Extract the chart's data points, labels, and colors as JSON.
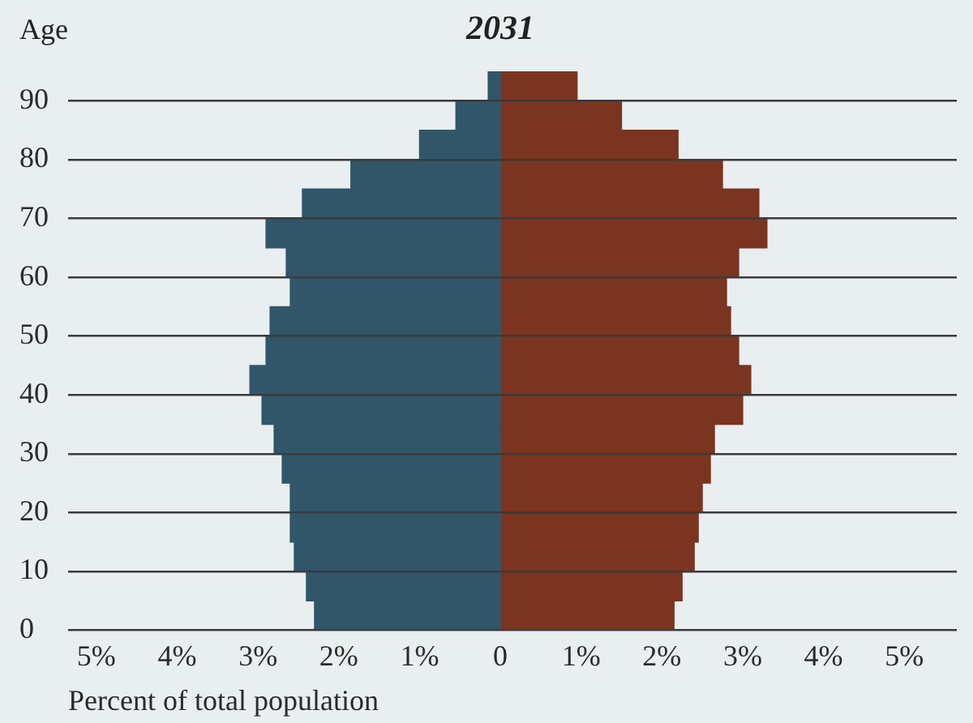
{
  "chart_data": {
    "type": "bar",
    "title": "2031",
    "xlabel": "Percent of total population",
    "ylabel": "Age",
    "orientation": "horizontal",
    "stacked": true,
    "grid": "y",
    "x": [
      2.5,
      7.5,
      12.5,
      17.5,
      22.5,
      27.5,
      32.5,
      37.5,
      42.5,
      47.5,
      52.5,
      57.5,
      62.5,
      67.5,
      72.5,
      77.5,
      82.5,
      87.5,
      92.5
    ],
    "series": [
      {
        "color": "#31566a",
        "values": [
          -2.3,
          -2.4,
          -2.55,
          -2.6,
          -2.6,
          -2.7,
          -2.8,
          -2.95,
          -3.1,
          -2.9,
          -2.85,
          -2.6,
          -2.65,
          -2.9,
          -2.45,
          -1.85,
          -1.0,
          -0.55,
          -0.15
        ]
      },
      {
        "color": "#7b3420",
        "values": [
          2.15,
          2.25,
          2.4,
          2.45,
          2.5,
          2.6,
          2.65,
          3.0,
          3.1,
          2.95,
          2.85,
          2.8,
          2.95,
          3.3,
          3.2,
          2.75,
          2.2,
          1.5,
          0.95
        ]
      }
    ],
    "xlim": [
      -5.35,
      5.65
    ],
    "xticks": [
      {
        "value": -5,
        "label": "5%"
      },
      {
        "value": -4,
        "label": "4%"
      },
      {
        "value": -3,
        "label": "3%"
      },
      {
        "value": -2,
        "label": "2%"
      },
      {
        "value": -1,
        "label": "1%"
      },
      0,
      {
        "value": 1,
        "label": "1%"
      },
      {
        "value": 2,
        "label": "2%"
      },
      {
        "value": 3,
        "label": "3%"
      },
      {
        "value": 4,
        "label": "4%"
      },
      {
        "value": 5,
        "label": "5%"
      }
    ],
    "ylim": [
      0,
      95
    ],
    "yticks": [
      0,
      10,
      20,
      30,
      40,
      50,
      60,
      70,
      80,
      90
    ]
  }
}
